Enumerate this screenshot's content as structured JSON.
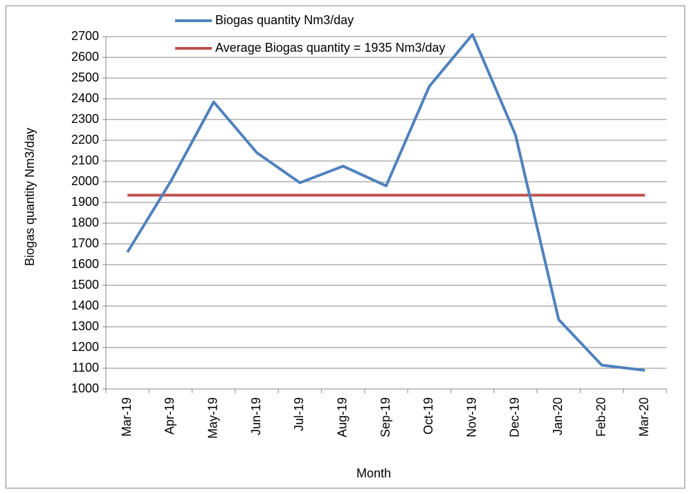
{
  "chart_data": {
    "type": "line",
    "x_label": "Month",
    "y_label": "Biogas quantity Nm3/day",
    "categories": [
      "Mar-19",
      "Apr-19",
      "May-19",
      "Jun-19",
      "Jul-19",
      "Aug-19",
      "Sep-19",
      "Oct-19",
      "Nov-19",
      "Dec-19",
      "Jan-20",
      "Feb-20",
      "Mar-20"
    ],
    "series": [
      {
        "name": "Biogas quantity Nm3/day",
        "color": "#4f81bd",
        "values": [
          1660,
          2000,
          2385,
          2140,
          1995,
          2075,
          1980,
          2460,
          2710,
          2225,
          1335,
          1115,
          1090
        ]
      },
      {
        "name": "Average Biogas quantity = 1935 Nm3/day",
        "color": "#c0504d",
        "values": [
          1935,
          1935,
          1935,
          1935,
          1935,
          1935,
          1935,
          1935,
          1935,
          1935,
          1935,
          1935,
          1935
        ]
      }
    ],
    "ylim": [
      1000,
      2700
    ],
    "yticks": [
      1000,
      1100,
      1200,
      1300,
      1400,
      1500,
      1600,
      1700,
      1800,
      1900,
      2000,
      2100,
      2200,
      2300,
      2400,
      2500,
      2600,
      2700
    ],
    "grid": true,
    "legend": "top"
  }
}
